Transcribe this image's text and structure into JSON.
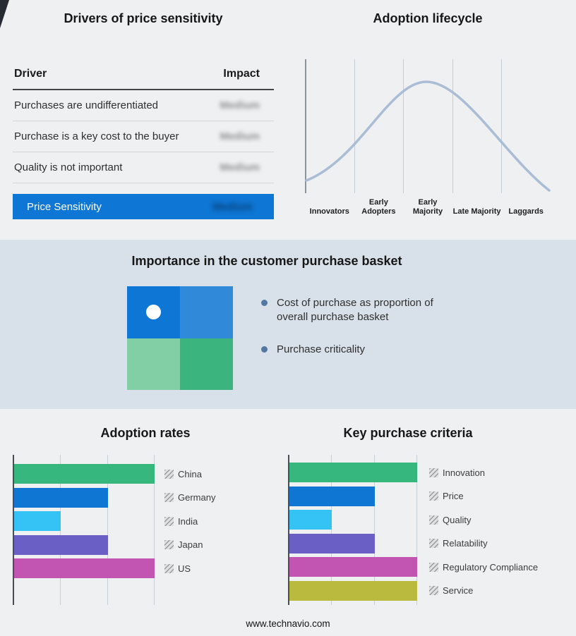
{
  "page": {
    "footer": "www.technavio.com"
  },
  "drivers_panel": {
    "title": "Drivers of price sensitivity",
    "columns": {
      "driver": "Driver",
      "impact": "Impact"
    },
    "rows": [
      {
        "driver": "Purchases are undifferentiated",
        "impact": "Medium"
      },
      {
        "driver": "Purchase is a key cost to the buyer",
        "impact": "Medium"
      },
      {
        "driver": "Quality is not important",
        "impact": "Medium"
      }
    ],
    "summary": {
      "label": "Price Sensitivity",
      "impact": "Medium"
    },
    "summary_color": "#0e76d4"
  },
  "basket": {
    "title": "Importance in the customer purchase basket",
    "bullets": [
      "Cost of purchase as proportion of overall purchase basket",
      "Purchase criticality"
    ],
    "quadrant_colors": [
      "#0e76d4",
      "#3189da",
      "#82cfa6",
      "#3cb47d"
    ],
    "bullet_color": "#54779f"
  },
  "chart_data": [
    {
      "type": "line",
      "title": "Adoption lifecycle",
      "shape": "bell-curve",
      "categories": [
        "Innovators",
        "Early Adopters",
        "Early Majority",
        "Late Majority",
        "Laggards"
      ],
      "x_relative": [
        0,
        0.25,
        0.49,
        0.75,
        1
      ],
      "y_relative_height": [
        0.08,
        0.55,
        1.0,
        0.55,
        0.05
      ],
      "color": "#aabdd4",
      "grid": "vertical-stage-boundaries",
      "legend": "none"
    },
    {
      "type": "bar",
      "title": "Adoption rates",
      "orientation": "horizontal",
      "categories": [
        "China",
        "Germany",
        "India",
        "Japan",
        "US"
      ],
      "values": [
        3,
        2,
        1,
        2,
        3
      ],
      "xlim": [
        0,
        3
      ],
      "colors": [
        "#36b77d",
        "#0f76d3",
        "#35c3f5",
        "#6a5fc4",
        "#c355b2"
      ],
      "grid": "vertical-thirds",
      "legend_position": "right"
    },
    {
      "type": "bar",
      "title": "Key purchase criteria",
      "orientation": "horizontal",
      "categories": [
        "Innovation",
        "Price",
        "Quality",
        "Relatability",
        "Regulatory Compliance",
        "Service"
      ],
      "values": [
        3,
        2,
        1,
        2,
        3,
        3
      ],
      "xlim": [
        0,
        3
      ],
      "colors": [
        "#36b77d",
        "#0f76d3",
        "#35c3f5",
        "#6a5fc4",
        "#c355b2",
        "#b9ba3e"
      ],
      "grid": "vertical-thirds",
      "legend_position": "right"
    }
  ]
}
